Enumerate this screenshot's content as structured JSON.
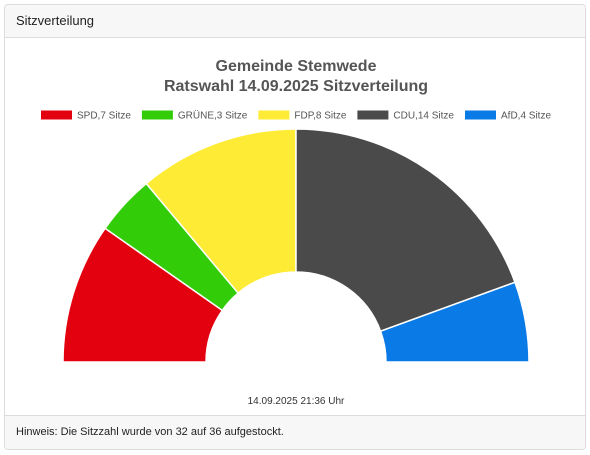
{
  "header": {
    "title": "Sitzverteilung"
  },
  "chart_data": {
    "type": "pie",
    "variant": "semicircle-donut",
    "title": "Gemeinde Stemwede",
    "subtitle": "Ratswahl 14.09.2025 Sitzverteilung",
    "legend_position": "top",
    "series": [
      {
        "name": "SPD",
        "label": "SPD,7 Sitze",
        "value": 7,
        "color": "#e3000f"
      },
      {
        "name": "GRÜNE",
        "label": "GRÜNE,3 Sitze",
        "value": 3,
        "color": "#32cd08"
      },
      {
        "name": "FDP",
        "label": "FDP,8 Sitze",
        "value": 8,
        "color": "#fdeb35"
      },
      {
        "name": "CDU",
        "label": "CDU,14 Sitze",
        "value": 14,
        "color": "#4a4a4a"
      },
      {
        "name": "AfD",
        "label": "AfD,4 Sitze",
        "value": 4,
        "color": "#0a7be6"
      }
    ],
    "total_seats": 36
  },
  "timestamp": "14.09.2025 21:36 Uhr",
  "footer": {
    "note": "Hinweis: Die Sitzzahl wurde von 32 auf 36 aufgestockt."
  }
}
